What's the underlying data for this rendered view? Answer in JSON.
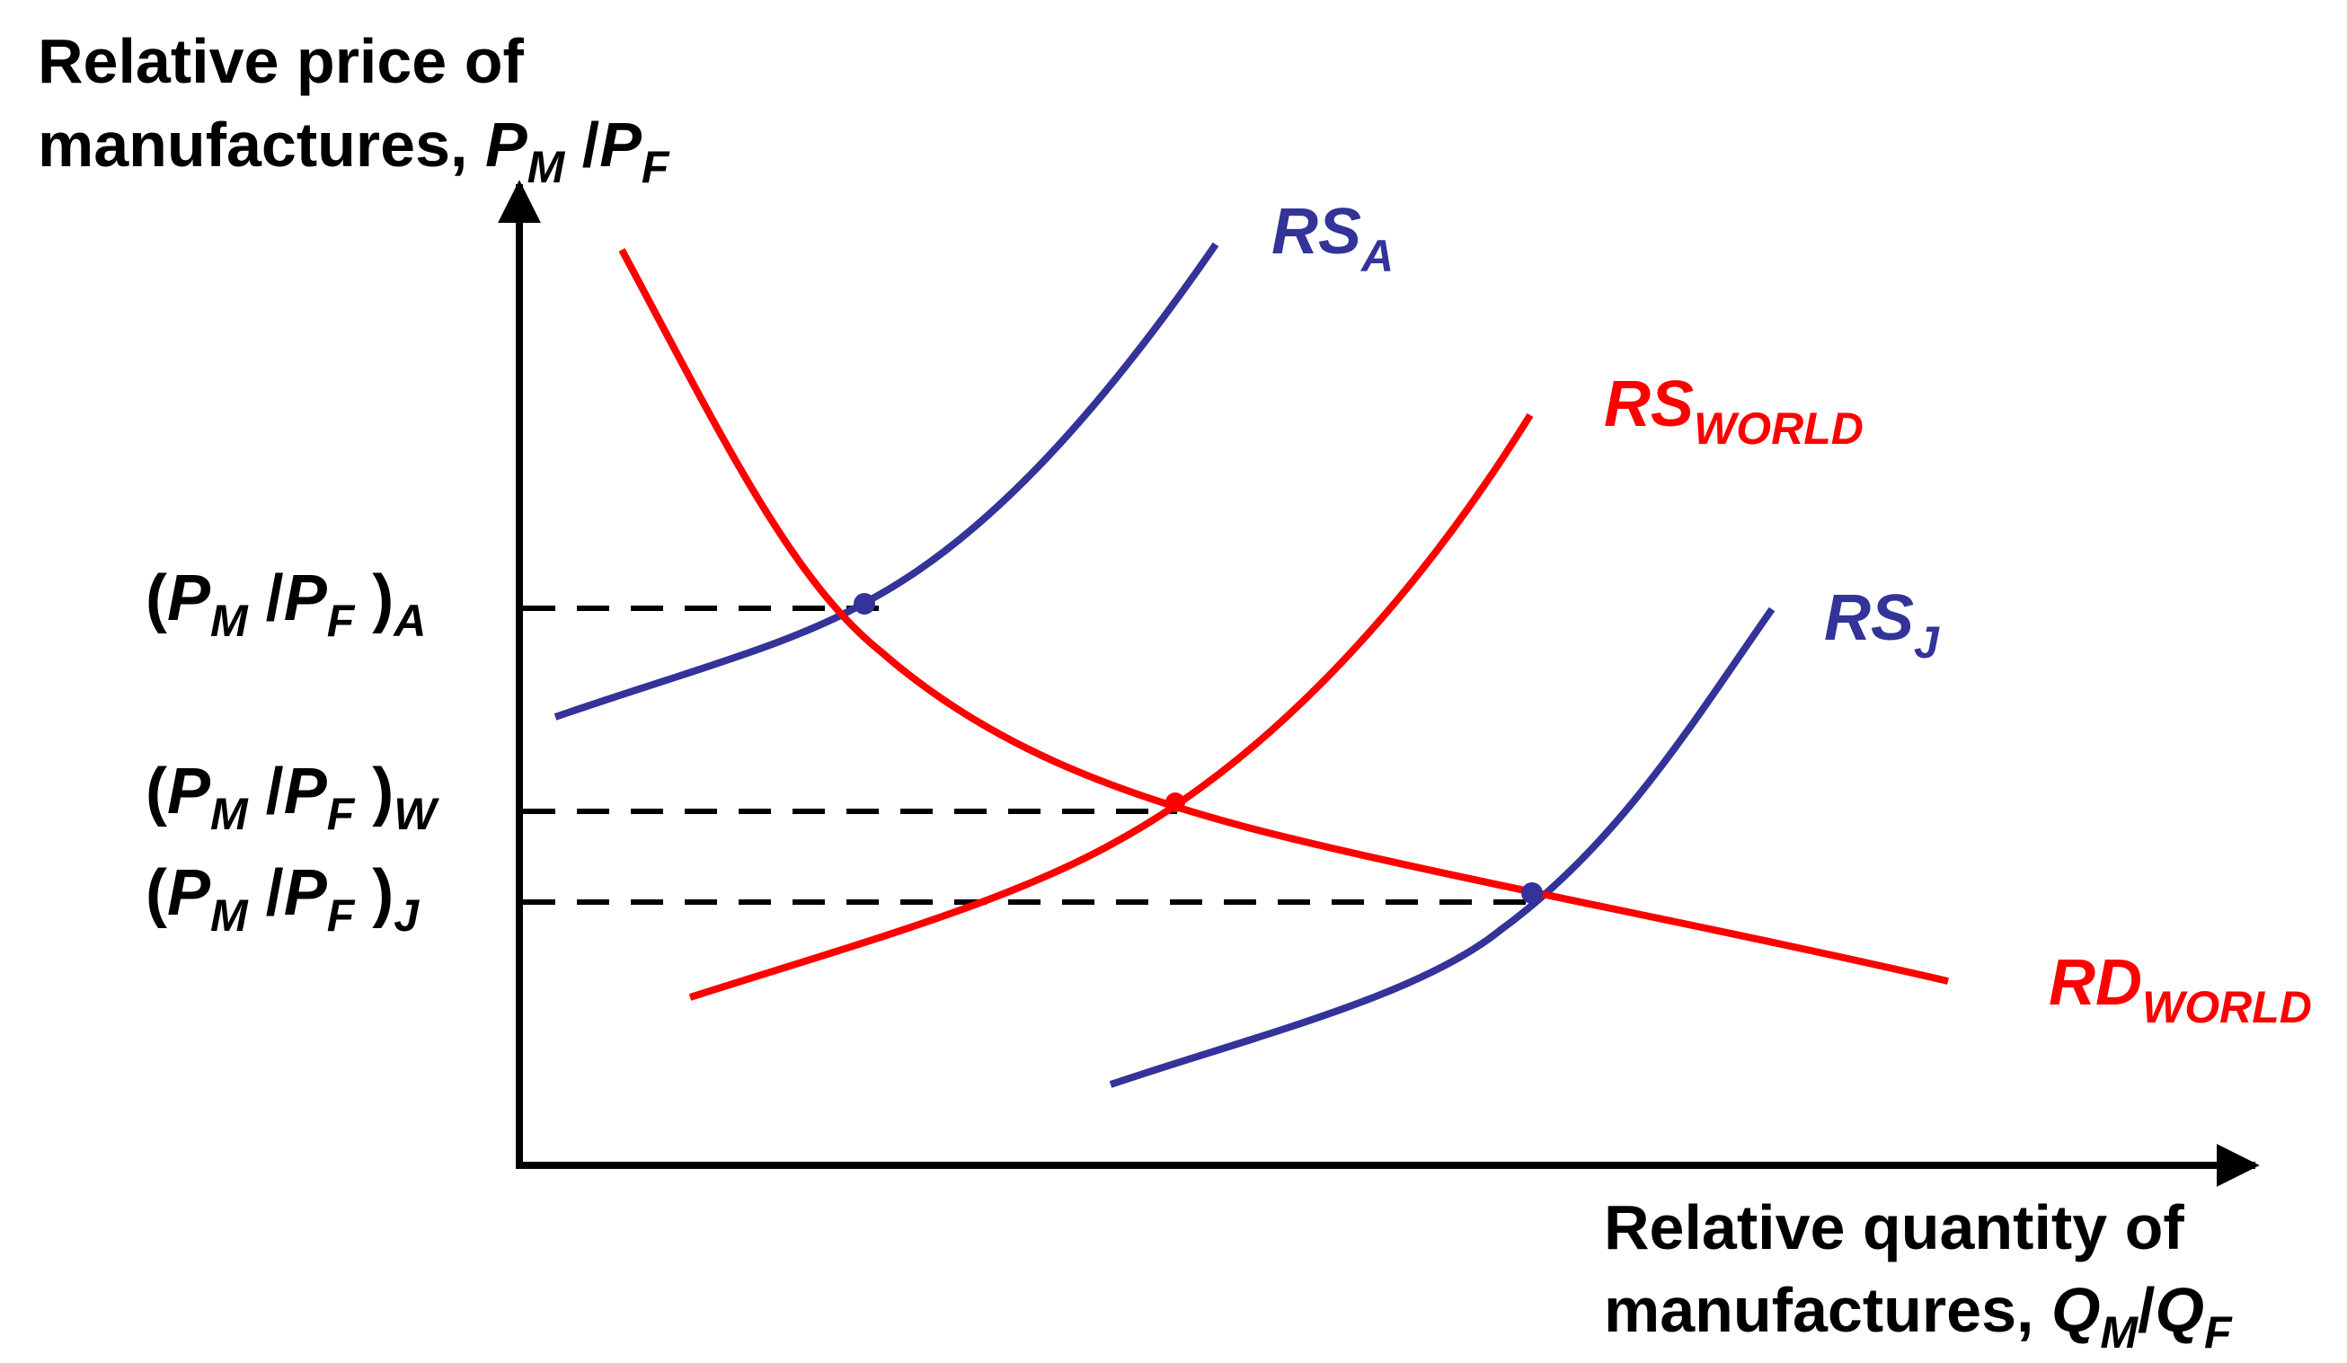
{
  "y_axis": {
    "title_line1": "Relative price of",
    "title_line2": "manufactures, ",
    "var1": "P",
    "var1_sub": "M",
    "slash": " /",
    "var2": "P",
    "var2_sub": "F"
  },
  "x_axis": {
    "title_line1": "Relative quantity of",
    "title_line2": "manufactures, ",
    "var1": "Q",
    "var1_sub": "M",
    "slash": "/",
    "var2": "Q",
    "var2_sub": "F"
  },
  "price_levels": [
    {
      "id": "A",
      "open": "(",
      "p1": "P",
      "p1_sub": "M",
      "slash": " /",
      "p2": "P",
      "p2_sub": "F",
      "close": " )",
      "sub": "A"
    },
    {
      "id": "W",
      "open": "(",
      "p1": "P",
      "p1_sub": "M",
      "slash": " /",
      "p2": "P",
      "p2_sub": "F",
      "close": " )",
      "sub": "W"
    },
    {
      "id": "J",
      "open": "(",
      "p1": "P",
      "p1_sub": "M",
      "slash": " /",
      "p2": "P",
      "p2_sub": "F",
      "close": " )",
      "sub": "J"
    }
  ],
  "curves": [
    {
      "id": "RS_A",
      "base": "RS",
      "sub": "A",
      "color": "#333399"
    },
    {
      "id": "RS_WORLD",
      "base": "RS",
      "sub": "WORLD",
      "color": "#ff0000"
    },
    {
      "id": "RS_J",
      "base": "RS",
      "sub": "J",
      "color": "#333399"
    },
    {
      "id": "RD_WORLD",
      "base": "RD",
      "sub": "WORLD",
      "color": "#ff0000"
    }
  ],
  "colors": {
    "axis": "#000000",
    "supply_country": "#333399",
    "world": "#ff0000",
    "guide": "#000000"
  }
}
